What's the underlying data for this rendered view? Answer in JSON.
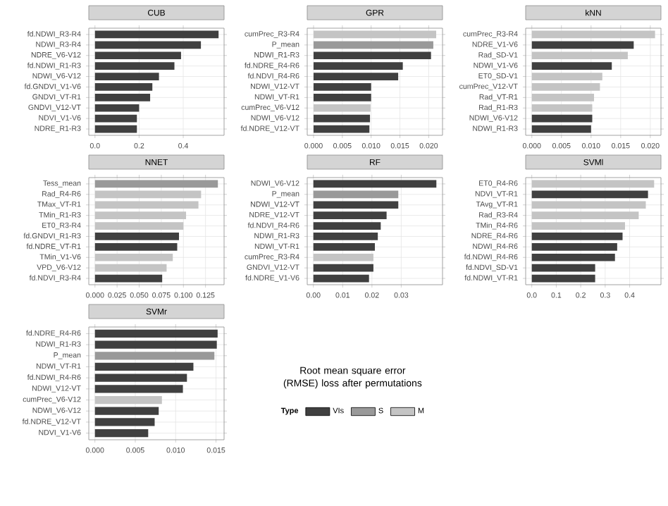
{
  "chart_data": [
    {
      "type": "bar",
      "orientation": "horizontal",
      "title": "CUB",
      "grid": true,
      "categories": [
        "fd.NDWI_R3-R4",
        "NDWI_R3-R4",
        "NDRE_V6-V12",
        "fd.NDWI_R1-R3",
        "NDWI_V6-V12",
        "fd.GNDVI_V1-V6",
        "GNDVI_VT-R1",
        "GNDVI_V12-VT",
        "NDVI_V1-V6",
        "NDRE_R1-R3"
      ],
      "values": [
        0.56,
        0.48,
        0.39,
        0.36,
        0.29,
        0.26,
        0.25,
        0.2,
        0.19,
        0.19
      ],
      "colors": [
        "#404040",
        "#404040",
        "#404040",
        "#404040",
        "#404040",
        "#404040",
        "#404040",
        "#404040",
        "#404040",
        "#404040"
      ],
      "xlim": [
        -0.028,
        0.585
      ],
      "xticks": [
        {
          "value": 0,
          "label": "0.0"
        },
        {
          "value": 0.2,
          "label": "0.2"
        },
        {
          "value": 0.4,
          "label": "0.4"
        }
      ]
    },
    {
      "type": "bar",
      "orientation": "horizontal",
      "title": "GPR",
      "grid": true,
      "categories": [
        "cumPrec_R3-R4",
        "P_mean",
        "NDWI_R1-R3",
        "fd.NDRE_R4-R6",
        "fd.NDVI_R4-R6",
        "NDWI_V12-VT",
        "NDWI_VT-R1",
        "cumPrec_V6-V12",
        "NDWI_V6-V12",
        "fd.NDRE_V12-VT"
      ],
      "values": [
        0.0213,
        0.0208,
        0.0204,
        0.0155,
        0.0147,
        0.01,
        0.01,
        0.0099,
        0.0098,
        0.0097
      ],
      "colors": [
        "#c4c4c4",
        "#999999",
        "#404040",
        "#404040",
        "#404040",
        "#404040",
        "#404040",
        "#c4c4c4",
        "#404040",
        "#404040"
      ],
      "xlim": [
        -0.0011,
        0.0224
      ],
      "xticks": [
        {
          "value": 0,
          "label": "0.000"
        },
        {
          "value": 0.005,
          "label": "0.005"
        },
        {
          "value": 0.01,
          "label": "0.010"
        },
        {
          "value": 0.015,
          "label": "0.015"
        },
        {
          "value": 0.02,
          "label": "0.020"
        }
      ]
    },
    {
      "type": "bar",
      "orientation": "horizontal",
      "title": "kNN",
      "grid": true,
      "categories": [
        "cumPrec_R3-R4",
        "NDRE_V1-V6",
        "Rad_SD-V1",
        "NDWI_V1-V6",
        "ET0_SD-V1",
        "cumPrec_V12-VT",
        "Rad_VT-R1",
        "Rad_R1-R3",
        "NDWI_V6-V12",
        "NDWI_R1-R3"
      ],
      "values": [
        0.0208,
        0.0172,
        0.0162,
        0.0135,
        0.0119,
        0.0115,
        0.0105,
        0.0102,
        0.0102,
        0.01
      ],
      "colors": [
        "#c4c4c4",
        "#404040",
        "#c4c4c4",
        "#404040",
        "#c4c4c4",
        "#c4c4c4",
        "#c4c4c4",
        "#c4c4c4",
        "#404040",
        "#404040"
      ],
      "xlim": [
        -0.00104,
        0.0218
      ],
      "xticks": [
        {
          "value": 0,
          "label": "0.000"
        },
        {
          "value": 0.005,
          "label": "0.005"
        },
        {
          "value": 0.01,
          "label": "0.010"
        },
        {
          "value": 0.015,
          "label": "0.015"
        },
        {
          "value": 0.02,
          "label": "0.020"
        }
      ]
    },
    {
      "type": "bar",
      "orientation": "horizontal",
      "title": "NNET",
      "grid": true,
      "categories": [
        "Tess_mean",
        "Rad_R4-R6",
        "TMax_VT-R1",
        "TMin_R1-R3",
        "ET0_R3-R4",
        "fd.GNDVI_R1-R3",
        "fd.NDRE_VT-R1",
        "TMin_V1-V6",
        "VPD_V6-V12",
        "fd.NDVI_R3-R4"
      ],
      "values": [
        0.139,
        0.12,
        0.117,
        0.103,
        0.1,
        0.095,
        0.093,
        0.088,
        0.081,
        0.076
      ],
      "colors": [
        "#999999",
        "#c4c4c4",
        "#c4c4c4",
        "#c4c4c4",
        "#c4c4c4",
        "#404040",
        "#404040",
        "#c4c4c4",
        "#c4c4c4",
        "#404040"
      ],
      "xlim": [
        -0.007,
        0.146
      ],
      "xticks": [
        {
          "value": 0,
          "label": "0.000"
        },
        {
          "value": 0.025,
          "label": "0.025"
        },
        {
          "value": 0.05,
          "label": "0.050"
        },
        {
          "value": 0.075,
          "label": "0.075"
        },
        {
          "value": 0.1,
          "label": "0.100"
        },
        {
          "value": 0.125,
          "label": "0.125"
        }
      ]
    },
    {
      "type": "bar",
      "orientation": "horizontal",
      "title": "RF",
      "grid": true,
      "categories": [
        "NDWI_V6-V12",
        "P_mean",
        "NDWI_V12-VT",
        "NDRE_V12-VT",
        "fd.NDVI_R4-R6",
        "NDWI_R1-R3",
        "NDWI_VT-R1",
        "cumPrec_R3-R4",
        "GNDVI_V12-VT",
        "fd.NDRE_V1-V6"
      ],
      "values": [
        0.042,
        0.029,
        0.029,
        0.025,
        0.023,
        0.022,
        0.021,
        0.0205,
        0.0205,
        0.019
      ],
      "colors": [
        "#404040",
        "#999999",
        "#404040",
        "#404040",
        "#404040",
        "#404040",
        "#404040",
        "#c4c4c4",
        "#404040",
        "#404040"
      ],
      "xlim": [
        -0.0021,
        0.0441
      ],
      "xticks": [
        {
          "value": 0,
          "label": "0.00"
        },
        {
          "value": 0.01,
          "label": "0.01"
        },
        {
          "value": 0.02,
          "label": "0.02"
        },
        {
          "value": 0.03,
          "label": "0.03"
        }
      ]
    },
    {
      "type": "bar",
      "orientation": "horizontal",
      "title": "SVMl",
      "grid": true,
      "categories": [
        "ET0_R4-R6",
        "NDVI_VT-R1",
        "TAvg_VT-R1",
        "Rad_R3-R4",
        "TMin_R4-R6",
        "NDRE_R4-R6",
        "NDWI_R4-R6",
        "fd.NDWI_R4-R6",
        "fd.NDVI_SD-V1",
        "fd.NDWI_VT-R1"
      ],
      "values": [
        0.5,
        0.475,
        0.466,
        0.437,
        0.381,
        0.371,
        0.349,
        0.34,
        0.259,
        0.259
      ],
      "colors": [
        "#c4c4c4",
        "#404040",
        "#c4c4c4",
        "#c4c4c4",
        "#c4c4c4",
        "#404040",
        "#404040",
        "#404040",
        "#404040",
        "#404040"
      ],
      "xlim": [
        -0.025,
        0.528
      ],
      "xticks": [
        {
          "value": 0,
          "label": "0.0"
        },
        {
          "value": 0.1,
          "label": "0.1"
        },
        {
          "value": 0.2,
          "label": "0.2"
        },
        {
          "value": 0.3,
          "label": "0.3"
        },
        {
          "value": 0.4,
          "label": "0.4"
        }
      ]
    },
    {
      "type": "bar",
      "orientation": "horizontal",
      "title": "SVMr",
      "grid": true,
      "xlabel": "Root mean square error (RMSE) loss after permutations",
      "legend": "bottom",
      "legend_title": "Type",
      "categories": [
        "fd.NDRE_R4-R6",
        "NDWI_R1-R3",
        "P_mean",
        "NDWI_VT-R1",
        "fd.NDWI_R4-R6",
        "NDWI_V12-VT",
        "cumPrec_V6-V12",
        "NDWI_V6-V12",
        "fd.NDRE_V12-VT",
        "NDVI_V1-V6"
      ],
      "series": [
        {
          "name": "VIs",
          "color": "#404040",
          "values": [
            0.0152,
            0.0151,
            null,
            0.0122,
            0.0114,
            0.0109,
            null,
            0.0079,
            0.0074,
            0.0066
          ]
        },
        {
          "name": "S",
          "color": "#999999",
          "values": [
            null,
            null,
            0.0148,
            null,
            null,
            null,
            null,
            null,
            null,
            null
          ]
        },
        {
          "name": "M",
          "color": "#c4c4c4",
          "values": [
            null,
            null,
            null,
            null,
            null,
            null,
            0.0083,
            null,
            null,
            null
          ]
        }
      ],
      "xlim": [
        -0.00076,
        0.016
      ],
      "xticks": [
        {
          "value": 0,
          "label": "0.000"
        },
        {
          "value": 0.005,
          "label": "0.005"
        },
        {
          "value": 0.01,
          "label": "0.010"
        },
        {
          "value": 0.015,
          "label": "0.015"
        }
      ]
    }
  ]
}
